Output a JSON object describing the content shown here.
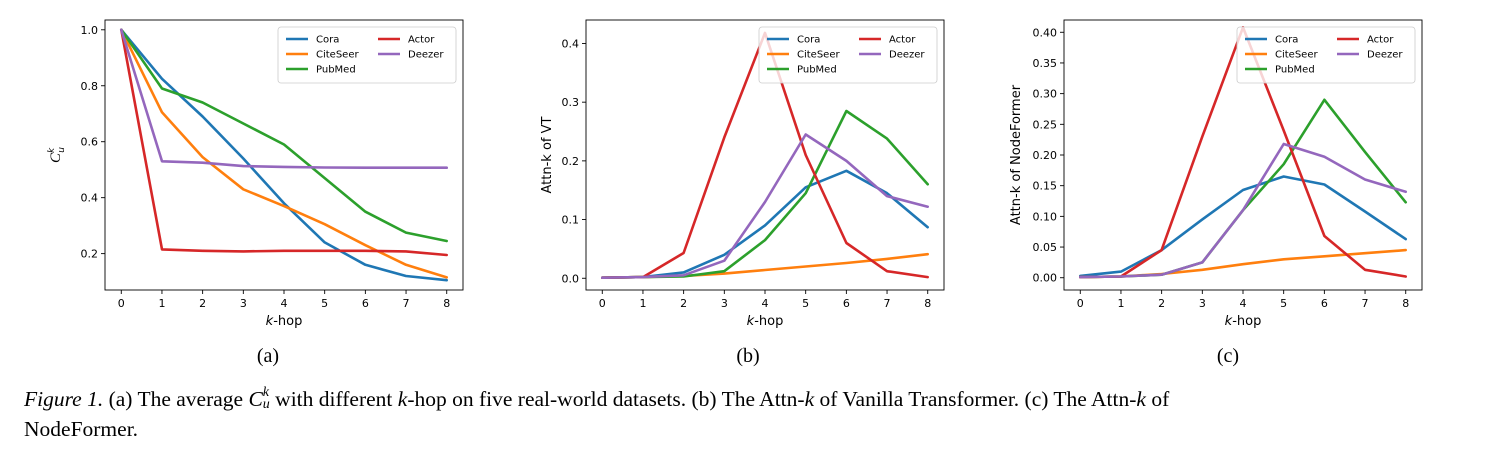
{
  "chart_data": [
    {
      "type": "line",
      "panel_label": "(a)",
      "x": [
        0,
        1,
        2,
        3,
        4,
        5,
        6,
        7,
        8
      ],
      "xlabel_italic": "k",
      "xlabel_rest": "-hop",
      "ylabel": "C",
      "ylabel_sup": "k",
      "ylabel_sub": "u",
      "xlim": [
        -0.4,
        8.4
      ],
      "ylim": [
        0.07,
        1.035
      ],
      "yticks": [
        0.2,
        0.4,
        0.6,
        0.8,
        1.0
      ],
      "ytick_labels": [
        "0.2",
        "0.4",
        "0.6",
        "0.8",
        "1.0"
      ],
      "legend": "top-right",
      "series": [
        {
          "name": "Cora",
          "color": "#1f77b4",
          "values": [
            1.0,
            0.825,
            0.69,
            0.54,
            0.38,
            0.24,
            0.16,
            0.12,
            0.105
          ]
        },
        {
          "name": "CiteSeer",
          "color": "#ff7f0e",
          "values": [
            1.0,
            0.705,
            0.545,
            0.43,
            0.37,
            0.305,
            0.23,
            0.16,
            0.115
          ]
        },
        {
          "name": "PubMed",
          "color": "#2ca02c",
          "values": [
            1.0,
            0.79,
            0.74,
            0.665,
            0.59,
            0.47,
            0.35,
            0.275,
            0.245
          ]
        },
        {
          "name": "Actor",
          "color": "#d62728",
          "values": [
            1.0,
            0.215,
            0.21,
            0.208,
            0.21,
            0.21,
            0.21,
            0.208,
            0.195
          ]
        },
        {
          "name": "Deezer",
          "color": "#9467bd",
          "values": [
            1.0,
            0.53,
            0.525,
            0.513,
            0.51,
            0.508,
            0.507,
            0.507,
            0.507
          ]
        }
      ]
    },
    {
      "type": "line",
      "panel_label": "(b)",
      "x": [
        0,
        1,
        2,
        3,
        4,
        5,
        6,
        7,
        8
      ],
      "xlabel_italic": "k",
      "xlabel_rest": "-hop",
      "ylabel": "Attn-k of VT",
      "xlim": [
        -0.4,
        8.4
      ],
      "ylim": [
        -0.02,
        0.44
      ],
      "yticks": [
        0.0,
        0.1,
        0.2,
        0.3,
        0.4
      ],
      "ytick_labels": [
        "0.0",
        "0.1",
        "0.2",
        "0.3",
        "0.4"
      ],
      "legend": "top-right",
      "series": [
        {
          "name": "Cora",
          "color": "#1f77b4",
          "values": [
            0.001,
            0.002,
            0.01,
            0.04,
            0.09,
            0.155,
            0.183,
            0.145,
            0.087
          ]
        },
        {
          "name": "CiteSeer",
          "color": "#ff7f0e",
          "values": [
            0.001,
            0.002,
            0.004,
            0.008,
            0.014,
            0.02,
            0.026,
            0.033,
            0.041
          ]
        },
        {
          "name": "PubMed",
          "color": "#2ca02c",
          "values": [
            0.001,
            0.002,
            0.003,
            0.012,
            0.065,
            0.145,
            0.285,
            0.238,
            0.16
          ]
        },
        {
          "name": "Actor",
          "color": "#d62728",
          "values": [
            0.001,
            0.002,
            0.043,
            0.24,
            0.418,
            0.21,
            0.06,
            0.012,
            0.002
          ]
        },
        {
          "name": "Deezer",
          "color": "#9467bd",
          "values": [
            0.001,
            0.002,
            0.005,
            0.03,
            0.13,
            0.245,
            0.2,
            0.14,
            0.122
          ]
        }
      ]
    },
    {
      "type": "line",
      "panel_label": "(c)",
      "x": [
        0,
        1,
        2,
        3,
        4,
        5,
        6,
        7,
        8
      ],
      "xlabel_italic": "k",
      "xlabel_rest": "-hop",
      "ylabel": "Attn-k of NodeFormer",
      "xlim": [
        -0.4,
        8.4
      ],
      "ylim": [
        -0.02,
        0.42
      ],
      "yticks": [
        0.0,
        0.05,
        0.1,
        0.15,
        0.2,
        0.25,
        0.3,
        0.35,
        0.4
      ],
      "ytick_labels": [
        "0.00",
        "0.05",
        "0.10",
        "0.15",
        "0.20",
        "0.25",
        "0.30",
        "0.35",
        "0.40"
      ],
      "legend": "top-right",
      "series": [
        {
          "name": "Cora",
          "color": "#1f77b4",
          "values": [
            0.003,
            0.01,
            0.045,
            0.095,
            0.143,
            0.165,
            0.152,
            0.108,
            0.063
          ]
        },
        {
          "name": "CiteSeer",
          "color": "#ff7f0e",
          "values": [
            0.001,
            0.002,
            0.006,
            0.013,
            0.022,
            0.03,
            0.035,
            0.04,
            0.045
          ]
        },
        {
          "name": "PubMed",
          "color": "#2ca02c",
          "values": [
            0.001,
            0.002,
            0.005,
            0.025,
            0.11,
            0.185,
            0.29,
            0.205,
            0.123
          ]
        },
        {
          "name": "Actor",
          "color": "#d62728",
          "values": [
            0.001,
            0.002,
            0.045,
            0.23,
            0.408,
            0.24,
            0.068,
            0.013,
            0.002
          ]
        },
        {
          "name": "Deezer",
          "color": "#9467bd",
          "values": [
            0.001,
            0.002,
            0.005,
            0.025,
            0.11,
            0.218,
            0.197,
            0.16,
            0.14
          ]
        }
      ]
    }
  ],
  "caption": {
    "figure_label": "Figure 1.",
    "text_a": "(a) The average",
    "math_C": "C",
    "math_k": "k",
    "math_u": "u",
    "text_b": "with different",
    "text_b_k": "k",
    "text_c": "-hop on five real-world datasets. (b) The Attn-",
    "text_c_k": "k",
    "text_d": "of Vanilla Transformer. (c) The Attn-",
    "text_d_k": "k",
    "text_e": "of",
    "text_line2": "NodeFormer."
  }
}
